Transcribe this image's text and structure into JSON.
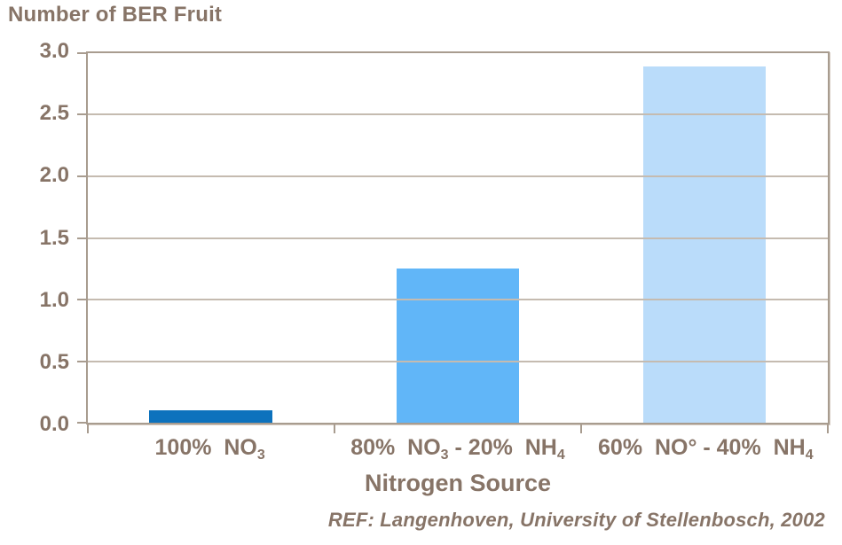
{
  "chart_data": {
    "type": "bar",
    "title": "Number of BER Fruit",
    "xlabel": "Nitrogen Source",
    "categories": [
      {
        "label": "100%  NO₃",
        "segments": [
          {
            "t": "100%  NO"
          },
          {
            "t": "3",
            "sub": true
          }
        ]
      },
      {
        "label": "80%  NO₃ - 20%  NH₄",
        "segments": [
          {
            "t": "80%  NO"
          },
          {
            "t": "3",
            "sub": true
          },
          {
            "t": " - 20%  NH"
          },
          {
            "t": "4",
            "sub": true
          }
        ]
      },
      {
        "label": "60%  NO° - 40%  NH₄",
        "segments": [
          {
            "t": "60%  NO° - 40%  NH"
          },
          {
            "t": "4",
            "sub": true
          }
        ]
      }
    ],
    "values": [
      0.1,
      1.25,
      2.89
    ],
    "bar_colors": [
      "#0d72bd",
      "#61b6f8",
      "#badcfa"
    ],
    "bar_width_fraction": 0.5,
    "ylim": [
      0,
      3
    ],
    "yticks": [
      {
        "label": "0.0",
        "value": 0.0
      },
      {
        "label": "0.5",
        "value": 0.5
      },
      {
        "label": "1.0",
        "value": 1.0
      },
      {
        "label": "1.5",
        "value": 1.5
      },
      {
        "label": "2.0",
        "value": 2.0
      },
      {
        "label": "2.5",
        "value": 2.5
      },
      {
        "label": "3.0",
        "value": 3.0
      }
    ],
    "grid": "horizontal",
    "legend": "none"
  },
  "footer": {
    "ref": "REF: Langenhoven, University of Stellenbosch, 2002"
  },
  "colors": {
    "text": "#877467",
    "axis": "#a89c8f",
    "grid": "#c5bbb0",
    "background": "#ffffff"
  }
}
